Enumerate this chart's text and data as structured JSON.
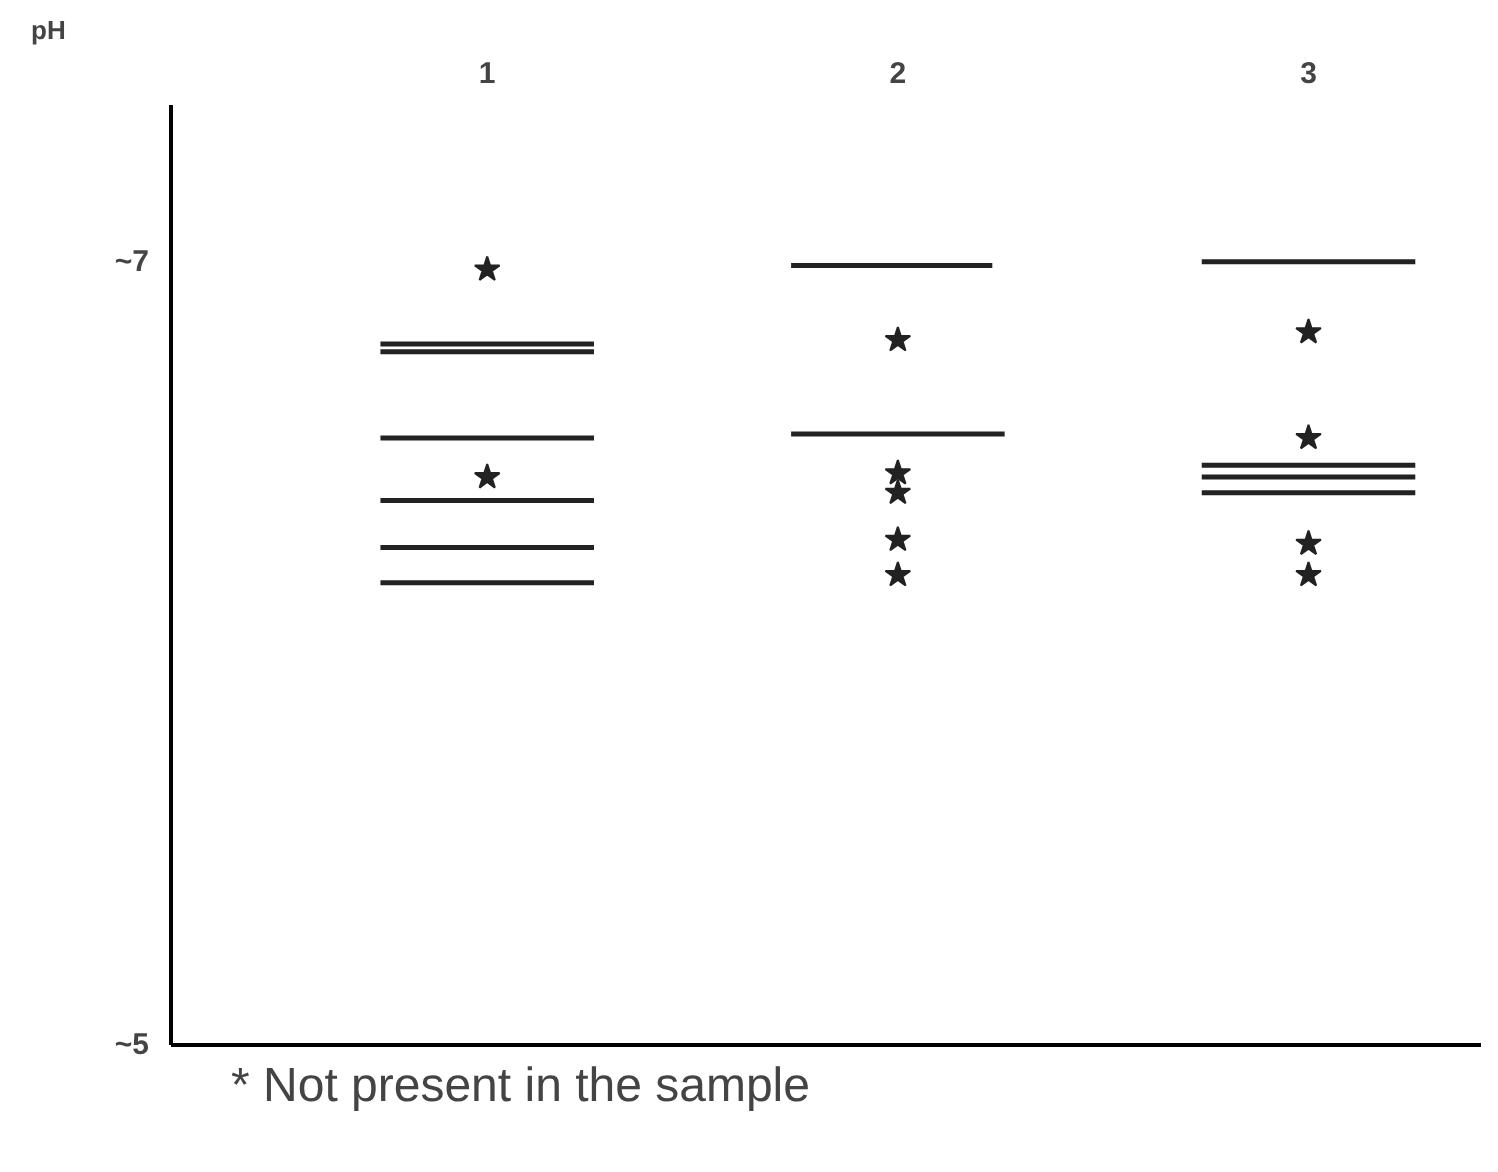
{
  "chart_data": {
    "type": "scatter",
    "ylabel": "pH",
    "xlim": [
      0.23,
      3.42
    ],
    "xticks": [
      1,
      2,
      3
    ],
    "ylim": [
      5,
      7.4
    ],
    "yticks": [
      {
        "value": 7,
        "label": "~7"
      },
      {
        "value": 5,
        "label": "~5"
      }
    ],
    "grid": false,
    "series": [
      {
        "marker": "star",
        "color": "#222222",
        "x": [
          1,
          1,
          2,
          2,
          2,
          2,
          2,
          3,
          3,
          3,
          3
        ],
        "values": [
          6.98,
          6.45,
          6.8,
          6.46,
          6.41,
          6.29,
          6.2,
          6.82,
          6.55,
          6.28,
          6.2
        ]
      },
      {
        "type": "line",
        "color": "#222222",
        "x": [
          0.74,
          1.26
        ],
        "values": [
          6.79,
          6.79
        ]
      },
      {
        "type": "line",
        "color": "#222222",
        "x": [
          0.74,
          1.26
        ],
        "values": [
          6.77,
          6.77
        ]
      },
      {
        "type": "line",
        "color": "#222222",
        "x": [
          0.74,
          1.26
        ],
        "values": [
          6.55,
          6.55
        ]
      },
      {
        "type": "line",
        "color": "#222222",
        "x": [
          0.74,
          1.26
        ],
        "values": [
          6.39,
          6.39
        ]
      },
      {
        "type": "line",
        "color": "#222222",
        "x": [
          0.74,
          1.26
        ],
        "values": [
          6.27,
          6.27
        ]
      },
      {
        "type": "line",
        "color": "#222222",
        "x": [
          0.74,
          1.26
        ],
        "values": [
          6.18,
          6.18
        ]
      },
      {
        "type": "line",
        "color": "#222222",
        "x": [
          1.74,
          2.23
        ],
        "values": [
          6.99,
          6.99
        ]
      },
      {
        "type": "line",
        "color": "#222222",
        "x": [
          1.74,
          2.26
        ],
        "values": [
          6.56,
          6.56
        ]
      },
      {
        "type": "line",
        "color": "#222222",
        "x": [
          2.74,
          3.26
        ],
        "values": [
          7.0,
          7.0
        ]
      },
      {
        "type": "line",
        "color": "#222222",
        "x": [
          2.74,
          3.26
        ],
        "values": [
          6.48,
          6.48
        ]
      },
      {
        "type": "line",
        "color": "#222222",
        "x": [
          2.74,
          3.26
        ],
        "values": [
          6.45,
          6.45
        ]
      },
      {
        "type": "line",
        "color": "#222222",
        "x": [
          2.74,
          3.26
        ],
        "values": [
          6.41,
          6.41
        ]
      }
    ],
    "annotations": [
      "* Not present in the sample"
    ]
  }
}
